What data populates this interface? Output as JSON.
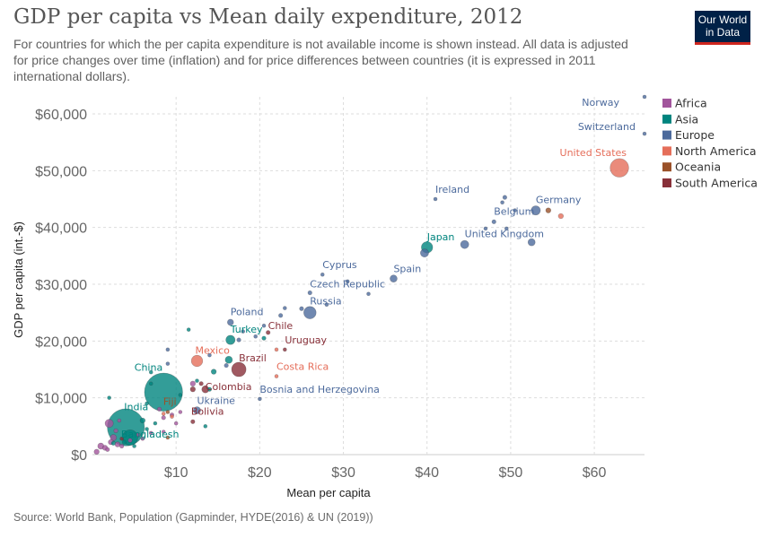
{
  "header": {
    "title": "GDP per capita vs Mean daily expenditure, 2012",
    "subtitle": "For countries for which the per capita expenditure is not available income is shown instead. All data is adjusted for price changes over time (inflation) and for price differences between countries (it is expressed in 2011 international dollars).",
    "logo_line1": "Our World",
    "logo_line2": "in Data"
  },
  "footer": {
    "source": "Source: World Bank, Population (Gapminder, HYDE(2016) & UN (2019))"
  },
  "colors": {
    "Africa": "#a2559c",
    "Asia": "#00847e",
    "Europe": "#4c6a9c",
    "North America": "#e56e5a",
    "Oceania": "#9a5129",
    "South America": "#883039"
  },
  "chart_data": {
    "type": "scatter",
    "title": "GDP per capita vs Mean daily expenditure, 2012",
    "xlabel": "Mean per capita",
    "ylabel": "GDP per capita (int.-$)",
    "xlim": [
      0,
      66
    ],
    "ylim": [
      0,
      63000
    ],
    "x_ticks": [
      10,
      20,
      30,
      40,
      50,
      60
    ],
    "x_tick_labels": [
      "$10",
      "$20",
      "$30",
      "$40",
      "$50",
      "$60"
    ],
    "y_ticks": [
      0,
      10000,
      20000,
      30000,
      40000,
      50000,
      60000
    ],
    "y_tick_labels": [
      "$0",
      "$10,000",
      "$20,000",
      "$30,000",
      "$40,000",
      "$50,000",
      "$60,000"
    ],
    "grid": true,
    "legend_position": "top-right",
    "legend": [
      "Africa",
      "Asia",
      "Europe",
      "North America",
      "Oceania",
      "South America"
    ],
    "points": [
      {
        "label": "Norway",
        "region": "Europe",
        "x": 66,
        "y": 63000,
        "size": 3
      },
      {
        "label": "Switzerland",
        "region": "Europe",
        "x": 66,
        "y": 56500,
        "size": 3
      },
      {
        "label": "United States",
        "region": "North America",
        "x": 63,
        "y": 50500,
        "size": 18
      },
      {
        "label": "Ireland",
        "region": "Europe",
        "x": 41,
        "y": 45000,
        "size": 3
      },
      {
        "label": "Germany",
        "region": "Europe",
        "x": 53,
        "y": 43000,
        "size": 9
      },
      {
        "label": "Belgium",
        "region": "Europe",
        "x": 48,
        "y": 41000,
        "size": 4
      },
      {
        "label": "Japan",
        "region": "Asia",
        "x": 40,
        "y": 36500,
        "size": 11
      },
      {
        "label": "United Kingdom",
        "region": "Europe",
        "x": 44.5,
        "y": 37000,
        "size": 8
      },
      {
        "label": "Spain",
        "region": "Europe",
        "x": 36,
        "y": 31000,
        "size": 7
      },
      {
        "label": "Cyprus",
        "region": "Europe",
        "x": 27.5,
        "y": 31700,
        "size": 2
      },
      {
        "label": "Czech Republic",
        "region": "Europe",
        "x": 26,
        "y": 28500,
        "size": 4
      },
      {
        "label": "Russia",
        "region": "Europe",
        "x": 26,
        "y": 25000,
        "size": 12
      },
      {
        "label": "Poland",
        "region": "Europe",
        "x": 16.5,
        "y": 23300,
        "size": 6
      },
      {
        "label": "Turkey",
        "region": "Asia",
        "x": 16.5,
        "y": 20200,
        "size": 9
      },
      {
        "label": "Chile",
        "region": "South America",
        "x": 21,
        "y": 21500,
        "size": 4
      },
      {
        "label": "Uruguay",
        "region": "South America",
        "x": 23,
        "y": 18500,
        "size": 2
      },
      {
        "label": "Mexico",
        "region": "North America",
        "x": 12.5,
        "y": 16500,
        "size": 11
      },
      {
        "label": "Brazil",
        "region": "South America",
        "x": 17.5,
        "y": 15000,
        "size": 14
      },
      {
        "label": "Costa Rica",
        "region": "North America",
        "x": 22,
        "y": 13800,
        "size": 3
      },
      {
        "label": "China",
        "region": "Asia",
        "x": 8.5,
        "y": 11000,
        "size": 37
      },
      {
        "label": "Colombia",
        "region": "South America",
        "x": 13.5,
        "y": 11500,
        "size": 7
      },
      {
        "label": "Bosnia and Herzegovina",
        "region": "Europe",
        "x": 20,
        "y": 9800,
        "size": 2
      },
      {
        "label": "Ukraine",
        "region": "Europe",
        "x": 12.5,
        "y": 7800,
        "size": 7
      },
      {
        "label": "India",
        "region": "Asia",
        "x": 4,
        "y": 4800,
        "size": 36
      },
      {
        "label": "Fiji",
        "region": "Oceania",
        "x": 9,
        "y": 7500,
        "size": 3
      },
      {
        "label": "Bolivia",
        "region": "South America",
        "x": 12,
        "y": 5800,
        "size": 4
      },
      {
        "label": "Bangladesh",
        "region": "Asia",
        "x": 4.5,
        "y": 3000,
        "size": 15
      },
      {
        "label": "",
        "region": "Europe",
        "x": 49.3,
        "y": 45300,
        "size": 4
      },
      {
        "label": "",
        "region": "Europe",
        "x": 49,
        "y": 44400,
        "size": 3
      },
      {
        "label": "",
        "region": "Europe",
        "x": 50.5,
        "y": 43000,
        "size": 3
      },
      {
        "label": "",
        "region": "Oceania",
        "x": 54.5,
        "y": 43000,
        "size": 5
      },
      {
        "label": "",
        "region": "North America",
        "x": 56,
        "y": 42000,
        "size": 5
      },
      {
        "label": "",
        "region": "Europe",
        "x": 47,
        "y": 39800,
        "size": 3
      },
      {
        "label": "",
        "region": "Europe",
        "x": 49.5,
        "y": 39800,
        "size": 3
      },
      {
        "label": "",
        "region": "Europe",
        "x": 52.5,
        "y": 37400,
        "size": 7
      },
      {
        "label": "",
        "region": "Europe",
        "x": 39.7,
        "y": 35500,
        "size": 8
      },
      {
        "label": "",
        "region": "Europe",
        "x": 30.5,
        "y": 30500,
        "size": 2
      },
      {
        "label": "",
        "region": "Europe",
        "x": 33,
        "y": 28300,
        "size": 3
      },
      {
        "label": "",
        "region": "Europe",
        "x": 23,
        "y": 25800,
        "size": 3
      },
      {
        "label": "",
        "region": "Europe",
        "x": 25,
        "y": 25700,
        "size": 4
      },
      {
        "label": "",
        "region": "Europe",
        "x": 28,
        "y": 26400,
        "size": 2
      },
      {
        "label": "",
        "region": "Europe",
        "x": 22.5,
        "y": 24500,
        "size": 4
      },
      {
        "label": "",
        "region": "Europe",
        "x": 18,
        "y": 21700,
        "size": 3
      },
      {
        "label": "",
        "region": "Europe",
        "x": 19.5,
        "y": 20800,
        "size": 3
      },
      {
        "label": "",
        "region": "Europe",
        "x": 20.5,
        "y": 22700,
        "size": 3
      },
      {
        "label": "",
        "region": "Europe",
        "x": 17.5,
        "y": 20200,
        "size": 4
      },
      {
        "label": "",
        "region": "Asia",
        "x": 11.5,
        "y": 22000,
        "size": 3
      },
      {
        "label": "",
        "region": "Asia",
        "x": 20.5,
        "y": 20500,
        "size": 4
      },
      {
        "label": "",
        "region": "Europe",
        "x": 9,
        "y": 18500,
        "size": 3
      },
      {
        "label": "",
        "region": "Asia",
        "x": 14.5,
        "y": 14600,
        "size": 5
      },
      {
        "label": "",
        "region": "Asia",
        "x": 16.3,
        "y": 16700,
        "size": 7
      },
      {
        "label": "",
        "region": "Europe",
        "x": 16,
        "y": 15700,
        "size": 4
      },
      {
        "label": "",
        "region": "Europe",
        "x": 14,
        "y": 17500,
        "size": 3
      },
      {
        "label": "",
        "region": "North America",
        "x": 22,
        "y": 18500,
        "size": 2
      },
      {
        "label": "",
        "region": "Africa",
        "x": 12,
        "y": 12500,
        "size": 5
      },
      {
        "label": "",
        "region": "South America",
        "x": 12,
        "y": 11500,
        "size": 5
      },
      {
        "label": "",
        "region": "South America",
        "x": 13,
        "y": 12500,
        "size": 4
      },
      {
        "label": "",
        "region": "Asia",
        "x": 10.5,
        "y": 10500,
        "size": 3
      },
      {
        "label": "",
        "region": "Asia",
        "x": 12.5,
        "y": 13000,
        "size": 3
      },
      {
        "label": "",
        "region": "Asia",
        "x": 14,
        "y": 11500,
        "size": 4
      },
      {
        "label": "",
        "region": "Asia",
        "x": 13.5,
        "y": 5000,
        "size": 3
      },
      {
        "label": "",
        "region": "Asia",
        "x": 6,
        "y": 6000,
        "size": 5
      },
      {
        "label": "",
        "region": "Asia",
        "x": 6.5,
        "y": 9000,
        "size": 3
      },
      {
        "label": "",
        "region": "Asia",
        "x": 2,
        "y": 10000,
        "size": 3
      },
      {
        "label": "",
        "region": "Asia",
        "x": 7,
        "y": 12500,
        "size": 3
      },
      {
        "label": "",
        "region": "Africa",
        "x": 8.5,
        "y": 6500,
        "size": 4
      },
      {
        "label": "",
        "region": "Africa",
        "x": 9.5,
        "y": 7000,
        "size": 4
      },
      {
        "label": "",
        "region": "Africa",
        "x": 8.5,
        "y": 4000,
        "size": 3
      },
      {
        "label": "",
        "region": "Africa",
        "x": 8,
        "y": 8000,
        "size": 4
      },
      {
        "label": "",
        "region": "Africa",
        "x": 10,
        "y": 5500,
        "size": 3
      },
      {
        "label": "",
        "region": "Africa",
        "x": 10.5,
        "y": 7500,
        "size": 3
      },
      {
        "label": "",
        "region": "Africa",
        "x": 2,
        "y": 5500,
        "size": 8
      },
      {
        "label": "",
        "region": "Africa",
        "x": 2.5,
        "y": 3000,
        "size": 6
      },
      {
        "label": "",
        "region": "Africa",
        "x": 1.5,
        "y": 1200,
        "size": 5
      },
      {
        "label": "",
        "region": "Africa",
        "x": 0.5,
        "y": 500,
        "size": 5
      },
      {
        "label": "",
        "region": "Africa",
        "x": 1,
        "y": 1500,
        "size": 6
      },
      {
        "label": "",
        "region": "Africa",
        "x": 3,
        "y": 1800,
        "size": 5
      },
      {
        "label": "",
        "region": "Africa",
        "x": 1.8,
        "y": 900,
        "size": 4
      },
      {
        "label": "",
        "region": "Africa",
        "x": 2.2,
        "y": 2200,
        "size": 5
      },
      {
        "label": "",
        "region": "Africa",
        "x": 3.5,
        "y": 1500,
        "size": 4
      },
      {
        "label": "",
        "region": "Africa",
        "x": 4.5,
        "y": 2500,
        "size": 4
      },
      {
        "label": "",
        "region": "Africa",
        "x": 5.5,
        "y": 3500,
        "size": 3
      },
      {
        "label": "",
        "region": "Africa",
        "x": 6,
        "y": 2800,
        "size": 3
      },
      {
        "label": "",
        "region": "Africa",
        "x": 7,
        "y": 3800,
        "size": 3
      },
      {
        "label": "",
        "region": "Africa",
        "x": 2.8,
        "y": 4200,
        "size": 4
      },
      {
        "label": "",
        "region": "Africa",
        "x": 3.2,
        "y": 6000,
        "size": 3
      },
      {
        "label": "",
        "region": "Asia",
        "x": 2.5,
        "y": 2000,
        "size": 4
      },
      {
        "label": "",
        "region": "Asia",
        "x": 5,
        "y": 1500,
        "size": 3
      },
      {
        "label": "",
        "region": "Asia",
        "x": 3.8,
        "y": 2200,
        "size": 4
      },
      {
        "label": "",
        "region": "Asia",
        "x": 6.5,
        "y": 4500,
        "size": 3
      },
      {
        "label": "",
        "region": "South America",
        "x": 3.5,
        "y": 2800,
        "size": 3
      },
      {
        "label": "",
        "region": "Oceania",
        "x": 9,
        "y": 3000,
        "size": 3
      },
      {
        "label": "",
        "region": "North America",
        "x": 8.5,
        "y": 7200,
        "size": 3
      },
      {
        "label": "",
        "region": "North America",
        "x": 9.5,
        "y": 6700,
        "size": 3
      },
      {
        "label": "",
        "region": "Asia",
        "x": 7.5,
        "y": 5500,
        "size": 3
      },
      {
        "label": "",
        "region": "Europe",
        "x": 9,
        "y": 16000,
        "size": 2
      },
      {
        "label": "",
        "region": "Asia",
        "x": 7,
        "y": 14500,
        "size": 3
      }
    ]
  }
}
